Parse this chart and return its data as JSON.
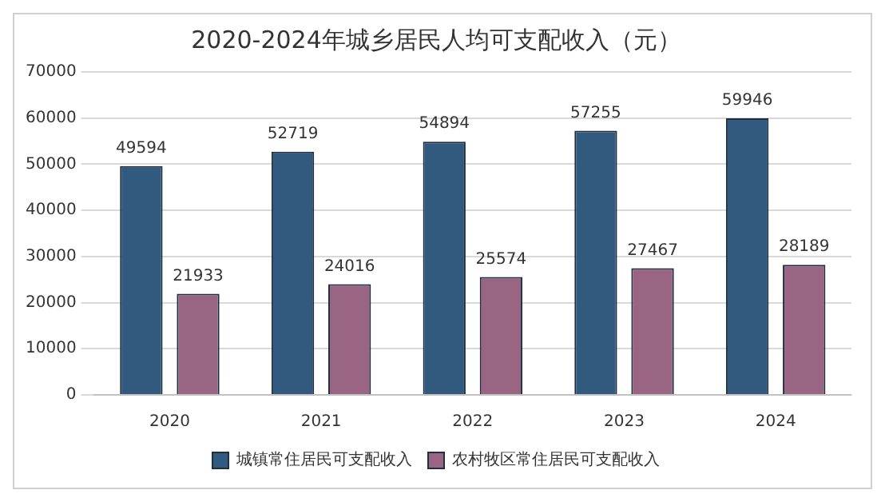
{
  "chart_data": {
    "type": "bar",
    "title": "2020-2024年城乡居民人均可支配收入（元）",
    "categories": [
      "2020",
      "2021",
      "2022",
      "2023",
      "2024"
    ],
    "series": [
      {
        "name": "城镇常住居民可支配收入",
        "color": "#325a7e",
        "values": [
          49594,
          52719,
          54894,
          57255,
          59946
        ]
      },
      {
        "name": "农村牧区常住居民可支配收入",
        "color": "#9a6582",
        "values": [
          21933,
          24016,
          25574,
          27467,
          28189
        ]
      }
    ],
    "ylim": [
      0,
      70000
    ],
    "yticks": [
      0,
      10000,
      20000,
      30000,
      40000,
      50000,
      60000,
      70000
    ],
    "grid": "y",
    "legend": "bottom",
    "data_labels": true
  }
}
